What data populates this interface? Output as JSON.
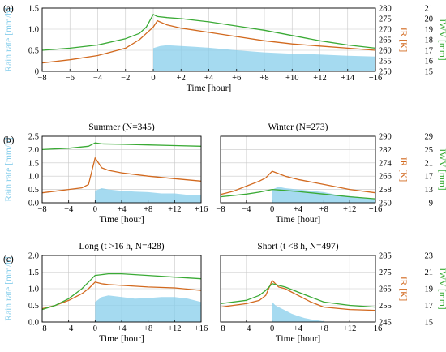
{
  "colors": {
    "rain": "#87ceeb",
    "ir": "#d2691e",
    "iwv": "#3aaa35",
    "grid": "#c8c8c8"
  },
  "chart_data": [
    {
      "id": "a",
      "label": "(a)",
      "type": "area",
      "title": "",
      "xlabel": "Time [hour]",
      "ylabel_left": "Rain rate [mm/h]",
      "ylabel_ir": "IR [K]",
      "ylabel_iwv": "IWV [mm]",
      "xlim": [
        -8,
        16
      ],
      "xticks": [
        -8,
        -6,
        -4,
        -2,
        0,
        2,
        4,
        6,
        8,
        10,
        12,
        14,
        16
      ],
      "xtick_labels": [
        "−8",
        "−6",
        "−4",
        "−2",
        "0",
        "+2",
        "+4",
        "+6",
        "+8",
        "+10",
        "+12",
        "+14",
        "+16"
      ],
      "ylim_rain": [
        0,
        1.5
      ],
      "yticks_rain": [
        0,
        0.5,
        1.0,
        1.5
      ],
      "ytick_labels_rain": [
        "0",
        "0.5",
        "1.0",
        "1.5"
      ],
      "ylim_ir": [
        250,
        280
      ],
      "yticks_ir": [
        250,
        255,
        260,
        265,
        270,
        275,
        280
      ],
      "ylim_iwv": [
        15,
        21
      ],
      "yticks_iwv": [
        15,
        16,
        17,
        18,
        19,
        20,
        21
      ],
      "series": [
        {
          "name": "Rain rate",
          "axis": "rain",
          "kind": "area",
          "x": [
            0,
            0.5,
            1,
            2,
            3,
            4,
            6,
            8,
            10,
            12,
            14,
            16
          ],
          "y": [
            0.55,
            0.6,
            0.62,
            0.6,
            0.58,
            0.56,
            0.5,
            0.45,
            0.42,
            0.4,
            0.37,
            0.35
          ]
        },
        {
          "name": "IR",
          "axis": "ir",
          "kind": "line",
          "x": [
            -8,
            -6,
            -4,
            -2,
            -1,
            -0.5,
            0,
            0.3,
            1,
            2,
            4,
            6,
            8,
            10,
            12,
            14,
            16
          ],
          "y": [
            254,
            255.5,
            257.5,
            261,
            265,
            268,
            271,
            274,
            272,
            270.5,
            268.5,
            266.5,
            264.5,
            263,
            262,
            261,
            260
          ]
        },
        {
          "name": "IWV",
          "axis": "iwv",
          "kind": "line",
          "x": [
            -8,
            -6,
            -4,
            -2,
            -1,
            -0.5,
            0,
            0.3,
            1,
            2,
            4,
            6,
            8,
            10,
            12,
            14,
            16
          ],
          "y": [
            17.0,
            17.2,
            17.5,
            18.1,
            18.6,
            19.2,
            20.4,
            20.2,
            20.1,
            20.0,
            19.7,
            19.3,
            18.9,
            18.4,
            17.9,
            17.5,
            17.2
          ]
        }
      ]
    },
    {
      "id": "b1",
      "label": "(b)",
      "type": "area",
      "title": "Summer (N=345)",
      "xlabel": "Time [hour]",
      "ylabel_left": "Rain rate [mm/h]",
      "xlim": [
        -8,
        16
      ],
      "xticks": [
        -8,
        -4,
        0,
        4,
        8,
        12,
        16
      ],
      "xtick_labels": [
        "−8",
        "−4",
        "0",
        "+4",
        "+8",
        "+12",
        "+16"
      ],
      "ylim_rain": [
        0,
        2.5
      ],
      "yticks_rain": [
        0,
        0.5,
        1.0,
        1.5,
        2.0,
        2.5
      ],
      "ytick_labels_rain": [
        "0.0",
        "0.5",
        "1.0",
        "1.5",
        "2.0",
        "2.5"
      ],
      "ylim_ir": [
        250,
        290
      ],
      "ylim_iwv": [
        9,
        29
      ],
      "series": [
        {
          "name": "Rain rate",
          "axis": "rain",
          "kind": "area",
          "x": [
            0,
            1,
            2,
            4,
            6,
            8,
            10,
            12,
            14,
            16
          ],
          "y": [
            0.45,
            0.55,
            0.5,
            0.45,
            0.42,
            0.4,
            0.35,
            0.35,
            0.3,
            0.28
          ]
        },
        {
          "name": "IR",
          "axis": "ir",
          "kind": "line",
          "x": [
            -8,
            -6,
            -4,
            -2,
            -1,
            0,
            1,
            2,
            4,
            8,
            12,
            16
          ],
          "y": [
            256,
            257,
            258,
            259,
            261,
            277,
            271,
            269.5,
            268,
            266,
            264.5,
            263
          ]
        },
        {
          "name": "IWV",
          "axis": "iwv",
          "kind": "line",
          "x": [
            -8,
            -4,
            -1,
            0,
            1,
            4,
            8,
            12,
            16
          ],
          "y": [
            25.0,
            25.4,
            26.0,
            27.0,
            26.7,
            26.6,
            26.4,
            26.2,
            26.0
          ]
        }
      ]
    },
    {
      "id": "b2",
      "label": "",
      "type": "area",
      "title": "Winter (N=273)",
      "xlabel": "Time [hour]",
      "ylabel_ir": "IR [K]",
      "ylabel_iwv": "IWV [mm]",
      "xlim": [
        -8,
        16
      ],
      "xticks": [
        -8,
        -4,
        0,
        4,
        8,
        12,
        16
      ],
      "xtick_labels": [
        "−8",
        "−4",
        "0",
        "+4",
        "+8",
        "+12",
        "+16"
      ],
      "ylim_rain": [
        0,
        2.5
      ],
      "ylim_ir": [
        250,
        290
      ],
      "yticks_ir": [
        250,
        258,
        266,
        274,
        282,
        290
      ],
      "ylim_iwv": [
        9,
        29
      ],
      "yticks_iwv": [
        9,
        13,
        17,
        21,
        25,
        29
      ],
      "series": [
        {
          "name": "Rain rate",
          "axis": "rain",
          "kind": "area",
          "x": [
            0,
            1,
            2,
            4,
            6,
            8,
            10,
            12,
            14,
            16
          ],
          "y": [
            0.5,
            0.6,
            0.55,
            0.5,
            0.45,
            0.4,
            0.3,
            0.25,
            0.2,
            0.15
          ]
        },
        {
          "name": "IR",
          "axis": "ir",
          "kind": "line",
          "x": [
            -8,
            -6,
            -4,
            -2,
            -1,
            0,
            1,
            2,
            4,
            8,
            12,
            16
          ],
          "y": [
            255,
            257,
            260,
            263,
            265,
            269,
            267.5,
            266,
            264,
            261,
            258,
            256
          ]
        },
        {
          "name": "IWV",
          "axis": "iwv",
          "kind": "line",
          "x": [
            -8,
            -4,
            -2,
            0,
            2,
            4,
            8,
            12,
            16
          ],
          "y": [
            10.8,
            11.6,
            12.2,
            13.0,
            12.7,
            12.4,
            11.6,
            10.8,
            10.2
          ]
        }
      ]
    },
    {
      "id": "c1",
      "label": "(c)",
      "type": "area",
      "title": "Long (t >16 h, N=428)",
      "xlabel": "Time [hour]",
      "ylabel_left": "Rain rate [mm/h]",
      "xlim": [
        -8,
        16
      ],
      "xticks": [
        -8,
        -4,
        0,
        4,
        8,
        12,
        16
      ],
      "xtick_labels": [
        "−8",
        "−4",
        "0",
        "+4",
        "+8",
        "+12",
        "+16"
      ],
      "ylim_rain": [
        0,
        2.0
      ],
      "yticks_rain": [
        0,
        0.5,
        1.0,
        1.5,
        2.0
      ],
      "ytick_labels_rain": [
        "0.0",
        "0.5",
        "1.0",
        "1.5",
        "2.0"
      ],
      "ylim_ir": [
        245,
        285
      ],
      "ylim_iwv": [
        15,
        23
      ],
      "series": [
        {
          "name": "Rain rate",
          "axis": "rain",
          "kind": "area",
          "x": [
            0,
            1,
            2,
            4,
            6,
            8,
            10,
            12,
            14,
            16
          ],
          "y": [
            0.6,
            0.75,
            0.8,
            0.75,
            0.7,
            0.72,
            0.75,
            0.75,
            0.7,
            0.6
          ]
        },
        {
          "name": "IR",
          "axis": "ir",
          "kind": "line",
          "x": [
            -8,
            -6,
            -4,
            -2,
            -1,
            0,
            1,
            2,
            4,
            8,
            12,
            16
          ],
          "y": [
            253,
            255,
            258,
            262,
            265,
            269,
            268,
            267.5,
            267,
            266,
            265.5,
            264
          ]
        },
        {
          "name": "IWV",
          "axis": "iwv",
          "kind": "line",
          "x": [
            -8,
            -6,
            -4,
            -2,
            -1,
            0,
            1,
            2,
            4,
            8,
            12,
            16
          ],
          "y": [
            16.5,
            17.0,
            17.8,
            19.0,
            19.8,
            20.6,
            20.7,
            20.8,
            20.8,
            20.6,
            20.4,
            20.2
          ]
        }
      ]
    },
    {
      "id": "c2",
      "label": "",
      "type": "area",
      "title": "Short (t <8 h, N=497)",
      "xlabel": "Time [hour]",
      "ylabel_ir": "IR [K]",
      "ylabel_iwv": "IWV [mm]",
      "xlim": [
        -8,
        16
      ],
      "xticks": [
        -8,
        -4,
        0,
        4,
        8,
        12,
        16
      ],
      "xtick_labels": [
        "−8",
        "−4",
        "0",
        "+4",
        "+8",
        "+12",
        "+16"
      ],
      "ylim_rain": [
        0,
        2.0
      ],
      "ylim_ir": [
        245,
        285
      ],
      "yticks_ir": [
        245,
        255,
        265,
        275,
        285
      ],
      "ylim_iwv": [
        15,
        23
      ],
      "yticks_iwv": [
        15,
        17,
        19,
        21,
        23
      ],
      "series": [
        {
          "name": "Rain rate",
          "axis": "rain",
          "kind": "area",
          "x": [
            0,
            0.5,
            1,
            2,
            3,
            4,
            5,
            6,
            7,
            8
          ],
          "y": [
            0.6,
            0.5,
            0.45,
            0.35,
            0.25,
            0.18,
            0.12,
            0.08,
            0.05,
            0.02
          ]
        },
        {
          "name": "IR",
          "axis": "ir",
          "kind": "line",
          "x": [
            -8,
            -6,
            -4,
            -2,
            -1,
            0,
            1,
            2,
            4,
            6,
            8,
            12,
            16
          ],
          "y": [
            254,
            255,
            256,
            258,
            261,
            270,
            266,
            265,
            261,
            257,
            254,
            252.5,
            252
          ]
        },
        {
          "name": "IWV",
          "axis": "iwv",
          "kind": "line",
          "x": [
            -8,
            -4,
            -2,
            -1,
            0,
            1,
            2,
            4,
            6,
            8,
            12,
            16
          ],
          "y": [
            17.2,
            17.6,
            18.2,
            18.8,
            19.6,
            19.4,
            19.2,
            18.6,
            18.0,
            17.4,
            17.0,
            16.8
          ]
        }
      ]
    }
  ]
}
